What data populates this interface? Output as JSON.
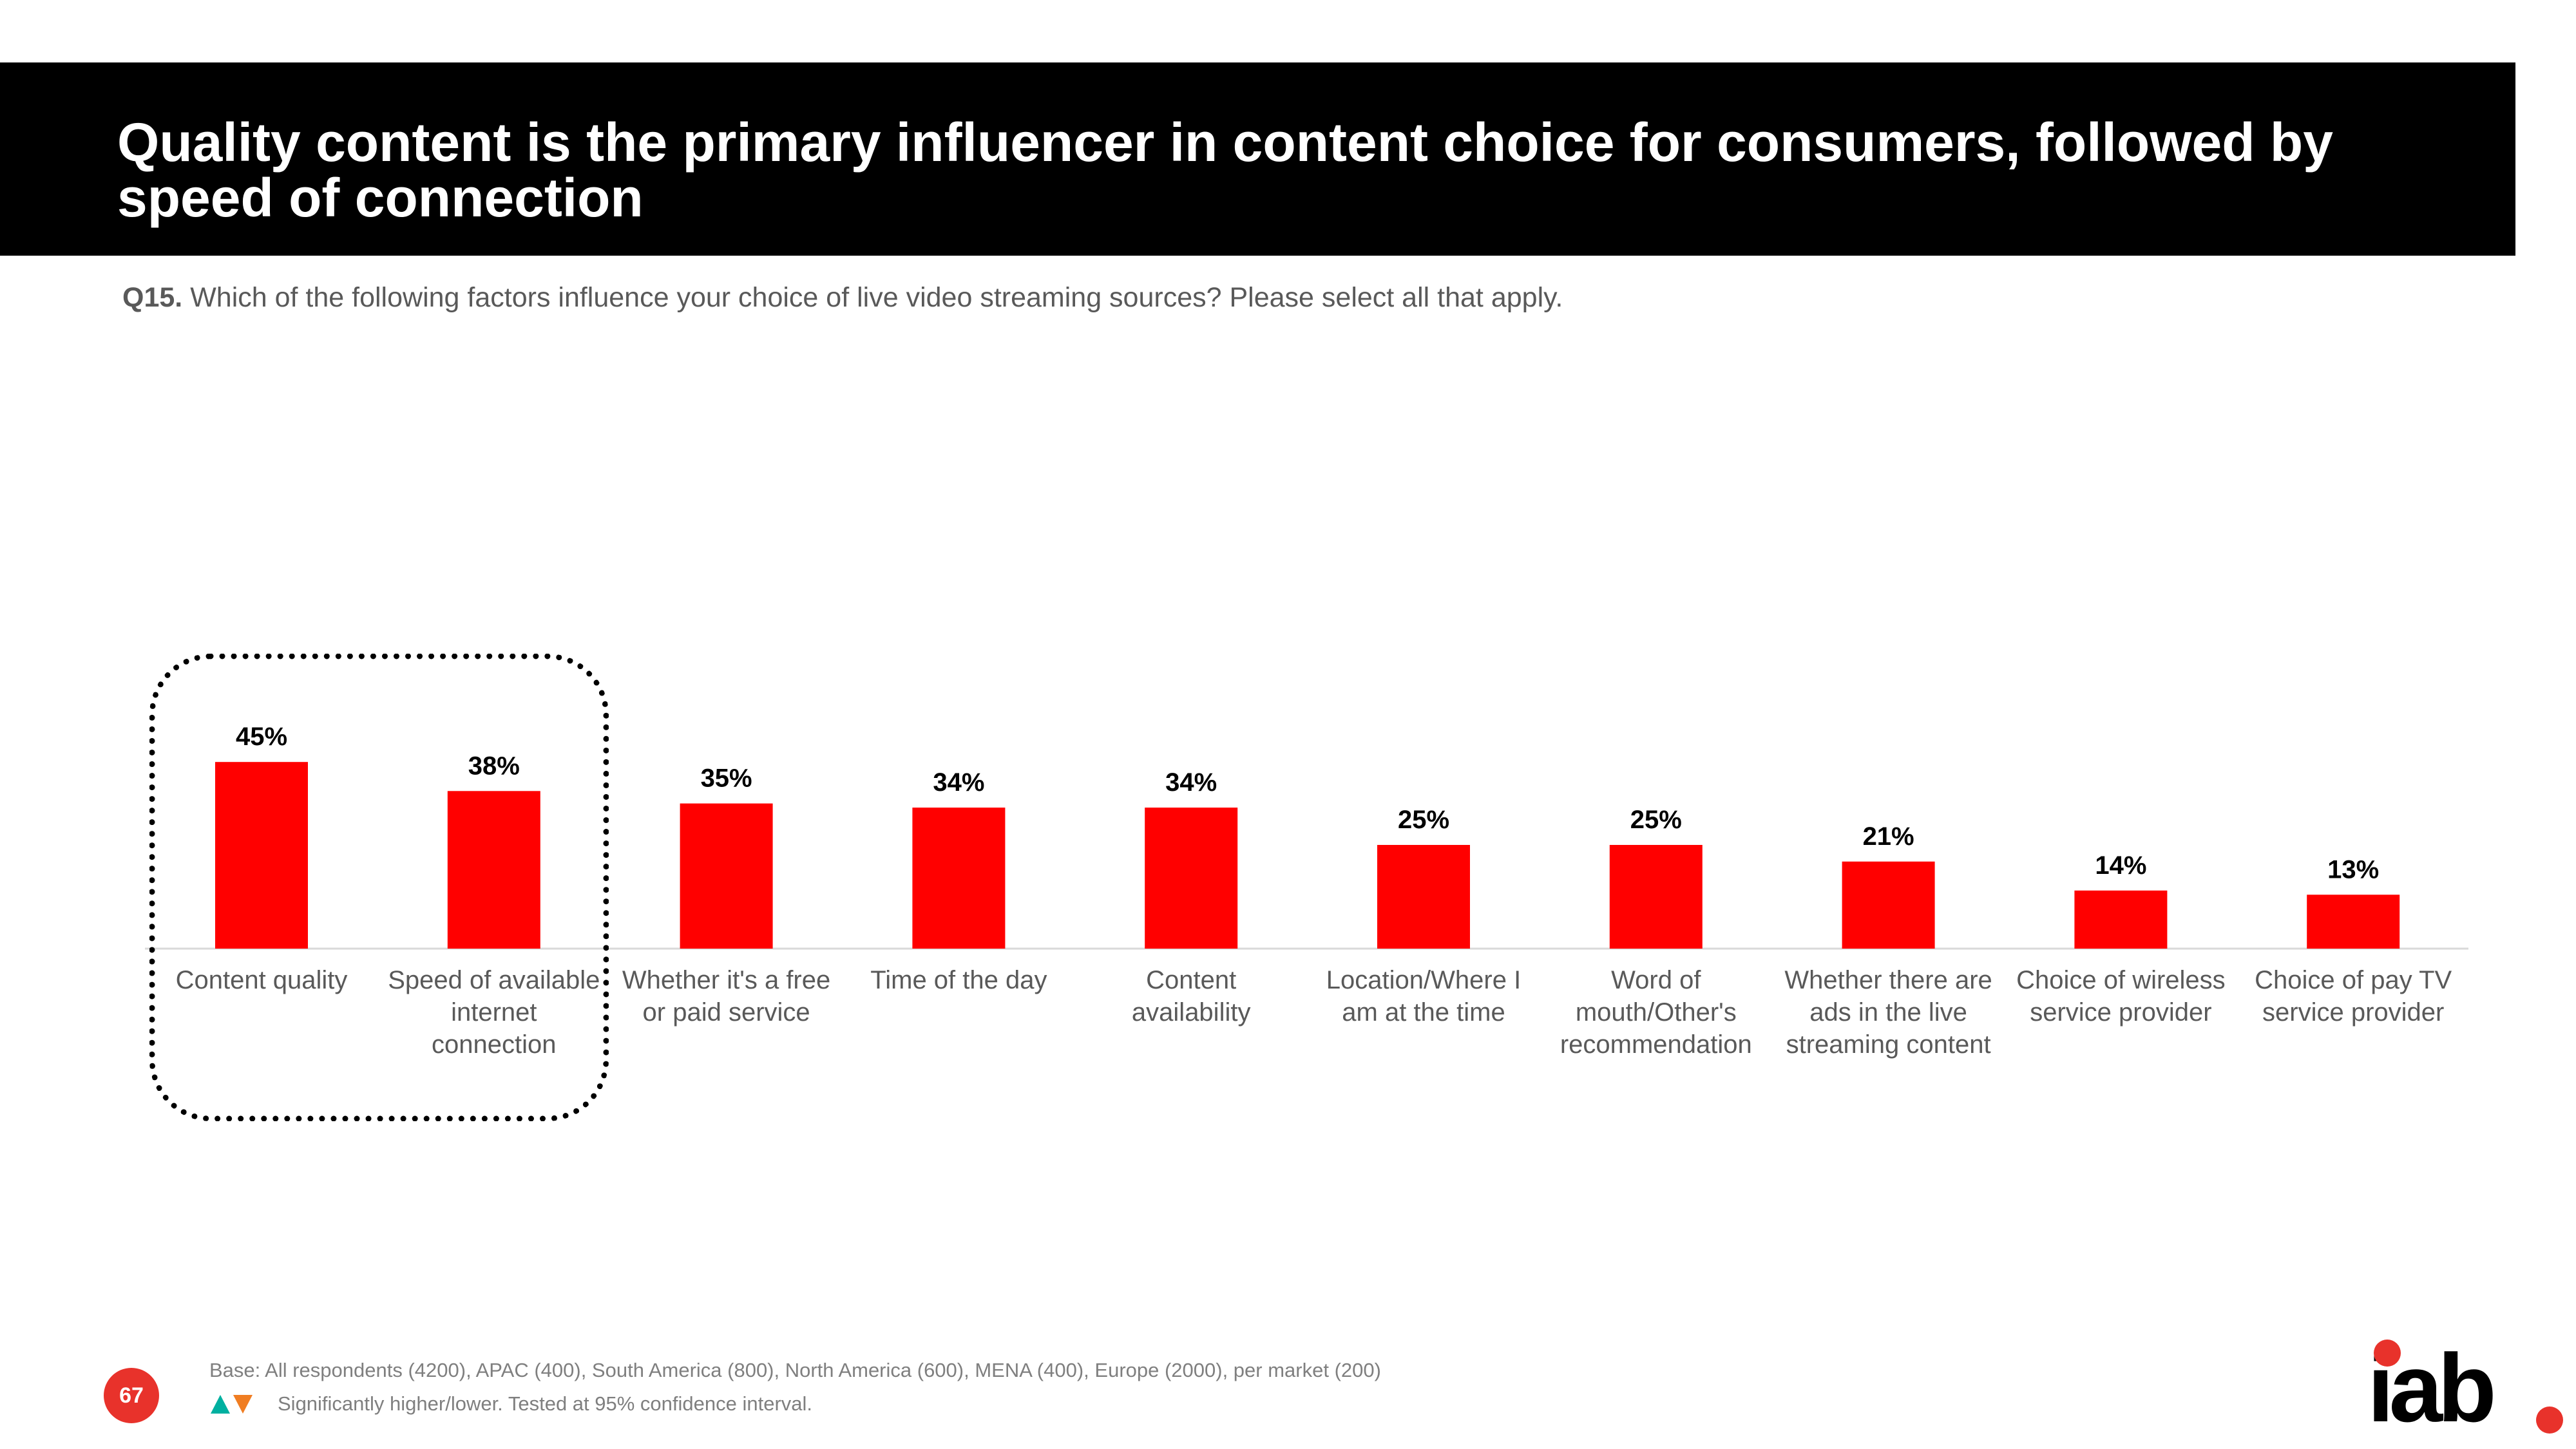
{
  "header": {
    "title": "Quality content is the primary influencer in content choice for consumers, followed by speed of connection"
  },
  "question": {
    "number": "Q15.",
    "text": "Which of the following factors influence your choice of live video streaming sources? Please select all that apply."
  },
  "chart_data": {
    "type": "bar",
    "title": "",
    "xlabel": "",
    "ylabel": "",
    "ylim": [
      0,
      50
    ],
    "grid": false,
    "categories": [
      "Content quality",
      "Speed of available internet connection",
      "Whether it's a free or paid service",
      "Time of the day",
      "Content availability",
      "Location/Where I am at the time",
      "Word of mouth/Other's recommendation",
      "Whether there are ads in the live streaming content",
      "Choice of wireless service provider",
      "Choice of pay TV service provider"
    ],
    "values": [
      45,
      38,
      35,
      34,
      34,
      25,
      25,
      21,
      14,
      13
    ],
    "data_labels": [
      "45%",
      "38%",
      "35%",
      "34%",
      "34%",
      "25%",
      "25%",
      "21%",
      "14%",
      "13%"
    ],
    "bar_color": "#ff0000",
    "highlighted_categories": [
      "Content quality",
      "Speed of available internet connection"
    ]
  },
  "footer": {
    "page_number": "67",
    "base_note": "Base: All respondents (4200), APAC (400), South America (800), North America (600), MENA (400), Europe (2000), per market (200)",
    "significance_note": "Significantly higher/lower. Tested at 95% confidence interval.",
    "significance_icons": [
      "triangle-up-icon",
      "triangle-down-icon"
    ],
    "up_color": "#00b0a0",
    "down_color": "#f07d22"
  },
  "logo": {
    "text": "iab",
    "accent_color": "#e8322b"
  }
}
